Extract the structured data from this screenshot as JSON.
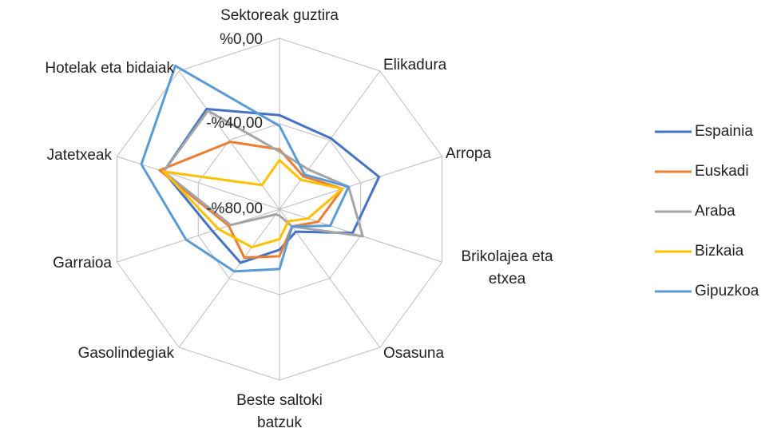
{
  "chart_data": {
    "type": "radar",
    "categories": [
      "Sektoreak guztira",
      "Elikadura",
      "Arropa",
      "Brikolajea eta etxea",
      "Osasuna",
      "Beste saltoki batzuk",
      "Gasolindegiak",
      "Garraioa",
      "Jatetxeak",
      "Hotelak eta bidaiak"
    ],
    "series": [
      {
        "name": "Espainia",
        "color": "#4472c4",
        "values": [
          -36,
          -39,
          -31,
          -44,
          -67,
          -61,
          -49,
          -47,
          -23,
          -22
        ]
      },
      {
        "name": "Euskadi",
        "color": "#ed7d31",
        "values": [
          -52,
          -61,
          -49,
          -61,
          -70,
          -58,
          -52,
          -55,
          -21,
          -41
        ]
      },
      {
        "name": "Araba",
        "color": "#a5a5a5",
        "values": [
          -53,
          -57,
          -46,
          -39,
          -70,
          -77,
          -77,
          -56,
          -23,
          -23
        ]
      },
      {
        "name": "Bizkaia",
        "color": "#ffc000",
        "values": [
          -57,
          -63,
          -49,
          -66,
          -73,
          -66,
          -58,
          -50,
          -23,
          -66
        ]
      },
      {
        "name": "Gipuzkoa",
        "color": "#5b9bd5",
        "values": [
          -41,
          -60,
          -46,
          -55,
          -70,
          -52,
          -44,
          -34,
          -12,
          3
        ]
      }
    ],
    "ylim": [
      -80,
      0
    ],
    "yticks": [
      {
        "value": -80,
        "label": "-%80,00"
      },
      {
        "value": -40,
        "label": "-%40,00"
      },
      {
        "value": 0,
        "label": "%0,00"
      }
    ],
    "grid": true,
    "legend": "right"
  }
}
